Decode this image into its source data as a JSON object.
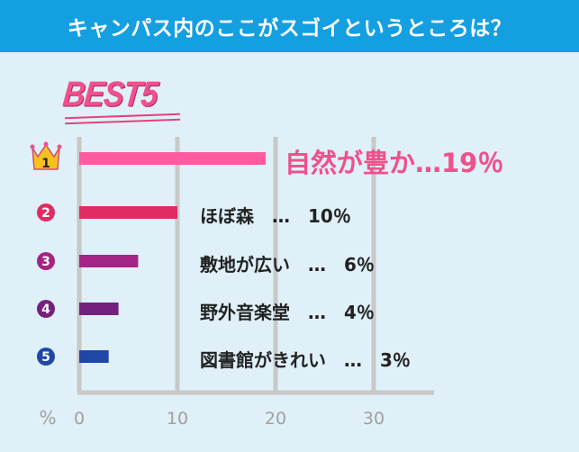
{
  "header": {
    "title": "キャンパス内のここがスゴイというところは？"
  },
  "best_label": "BEST5",
  "chart_data": {
    "type": "bar",
    "orientation": "horizontal",
    "title": "キャンパス内のここがスゴイというところは？",
    "categories": [
      "自然が豊か",
      "ほぼ森",
      "敷地が広い",
      "野外音楽堂",
      "図書館がきれい"
    ],
    "values": [
      19,
      10,
      6,
      4,
      3
    ],
    "labels": [
      "自然が豊か…19％",
      "ほぼ森　…　10％",
      "敷地が広い　…　6％",
      "野外音楽堂　…　4％",
      "図書館がきれい　…　3％"
    ],
    "ranks": [
      "1",
      "2",
      "3",
      "4",
      "5"
    ],
    "colors": [
      "#ff5aa0",
      "#e02b63",
      "#a62386",
      "#74207f",
      "#1f47a6"
    ],
    "x_unit": "%",
    "xlim": [
      0,
      35
    ],
    "ticks": [
      0,
      10,
      20,
      30
    ],
    "grid": true,
    "crown_color": "#f8c21c"
  }
}
